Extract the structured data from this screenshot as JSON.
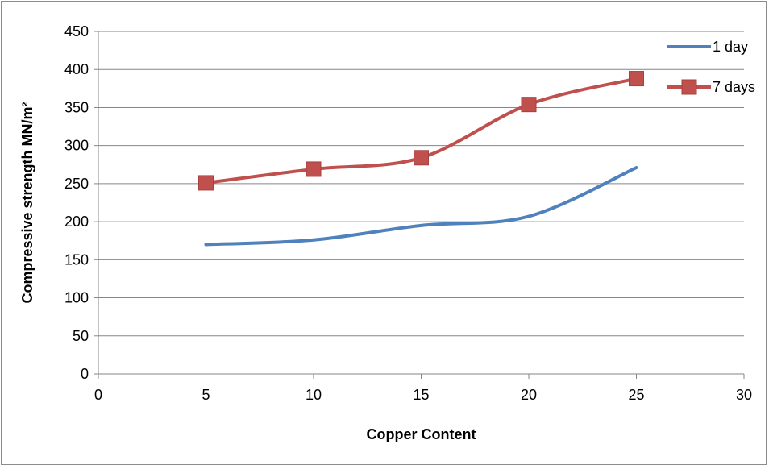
{
  "chart_data": {
    "type": "line",
    "title": "",
    "xlabel": "Copper Content",
    "ylabel": "Compressive strength MN/m²",
    "xlim": [
      0,
      30
    ],
    "ylim": [
      0,
      450
    ],
    "x_ticks": [
      0,
      5,
      10,
      15,
      20,
      25,
      30
    ],
    "y_ticks": [
      0,
      50,
      100,
      150,
      200,
      250,
      300,
      350,
      400,
      450
    ],
    "grid": "horizontal",
    "legend_position": "top-right",
    "smoothed": true,
    "series": [
      {
        "name": "1 day",
        "color": "#4f81bd",
        "marker": "none",
        "x": [
          5,
          10,
          15,
          20,
          25
        ],
        "y": [
          170,
          176,
          195,
          207,
          271
        ]
      },
      {
        "name": "7 days",
        "color": "#c0504d",
        "marker": "square",
        "x": [
          5,
          10,
          15,
          20,
          25
        ],
        "y": [
          251,
          269,
          284,
          354,
          388
        ]
      }
    ]
  }
}
